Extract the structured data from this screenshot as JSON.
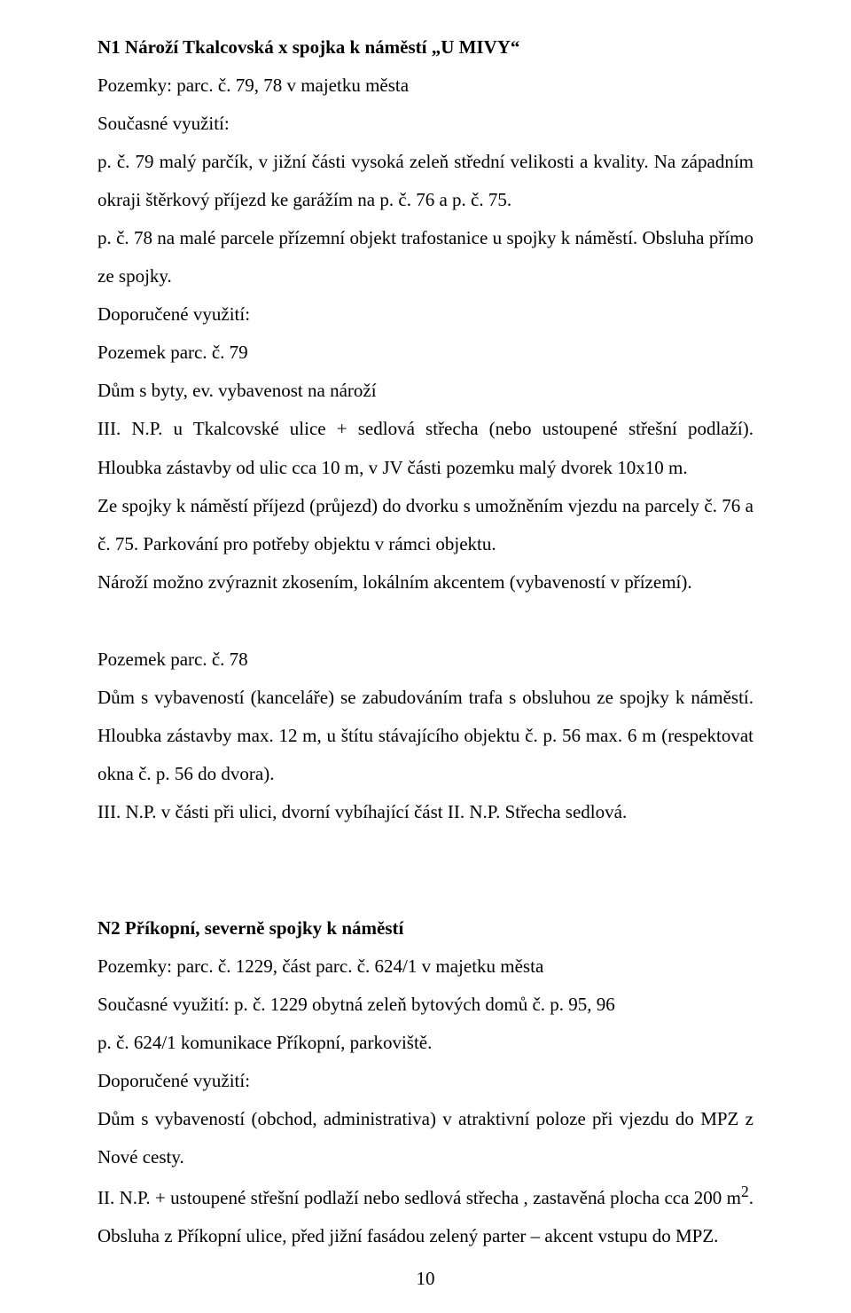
{
  "section1": {
    "heading": "N1  Nároží Tkalcovská x spojka k náměstí „U MIVY“",
    "p1": "Pozemky: parc. č. 79, 78 v majetku města",
    "p2": "Současné využití:",
    "p3": "p. č. 79 malý parčík, v jižní části vysoká zeleň  střední velikosti a kvality. Na západním okraji štěrkový příjezd ke garážím na p. č. 76 a p. č. 75.",
    "p4": " p. č. 78 na malé parcele přízemní objekt trafostanice u spojky k náměstí. Obsluha přímo ze spojky.",
    "p5": "Doporučené využití:",
    "p6": "Pozemek parc. č. 79",
    "p7": "Dům s byty, ev. vybavenost na nároží",
    "p8": " III. N.P. u Tkalcovské ulice + sedlová střecha (nebo ustoupené střešní podlaží). Hloubka zástavby od ulic cca 10 m, v JV části pozemku malý dvorek 10x10 m.",
    "p9": "Ze spojky k náměstí příjezd (průjezd) do dvorku s umožněním vjezdu na parcely č. 76 a č. 75. Parkování pro potřeby objektu v rámci objektu.",
    "p10": "Nároží možno zvýraznit zkosením, lokálním akcentem (vybaveností v přízemí).",
    "p11": "Pozemek parc. č. 78",
    "p12": "Dům  s vybaveností  (kanceláře)  se  zabudováním  trafa    s obsluhou  ze  spojky  k náměstí. Hloubka zástavby max. 12 m, u štítu stávajícího objektu č. p. 56 max. 6 m (respektovat okna č. p. 56 do dvora).",
    "p13": " III. N.P. v části při ulici, dvorní vybíhající část II. N.P. Střecha sedlová."
  },
  "section2": {
    "heading": "N2  Příkopní, severně spojky k náměstí",
    "p1": "Pozemky: parc. č. 1229, část parc. č. 624/1 v majetku města",
    "p2": "Současné využití: p. č. 1229 obytná zeleň bytových domů č. p. 95, 96",
    "p3": "p. č. 624/1 komunikace Příkopní, parkoviště.",
    "p4": "Doporučené využití:",
    "p5": "Dům s vybaveností (obchod, administrativa) v atraktivní poloze při vjezdu do MPZ z Nové cesty.",
    "p6a": "II. N.P. + ustoupené střešní podlaží nebo sedlová střecha , zastavěná plocha cca 200 m",
    "p6sup": "2",
    "p6b": ". Obsluha z Příkopní ulice, před jižní fasádou zelený parter – akcent vstupu do MPZ."
  },
  "pageNumber": "10"
}
